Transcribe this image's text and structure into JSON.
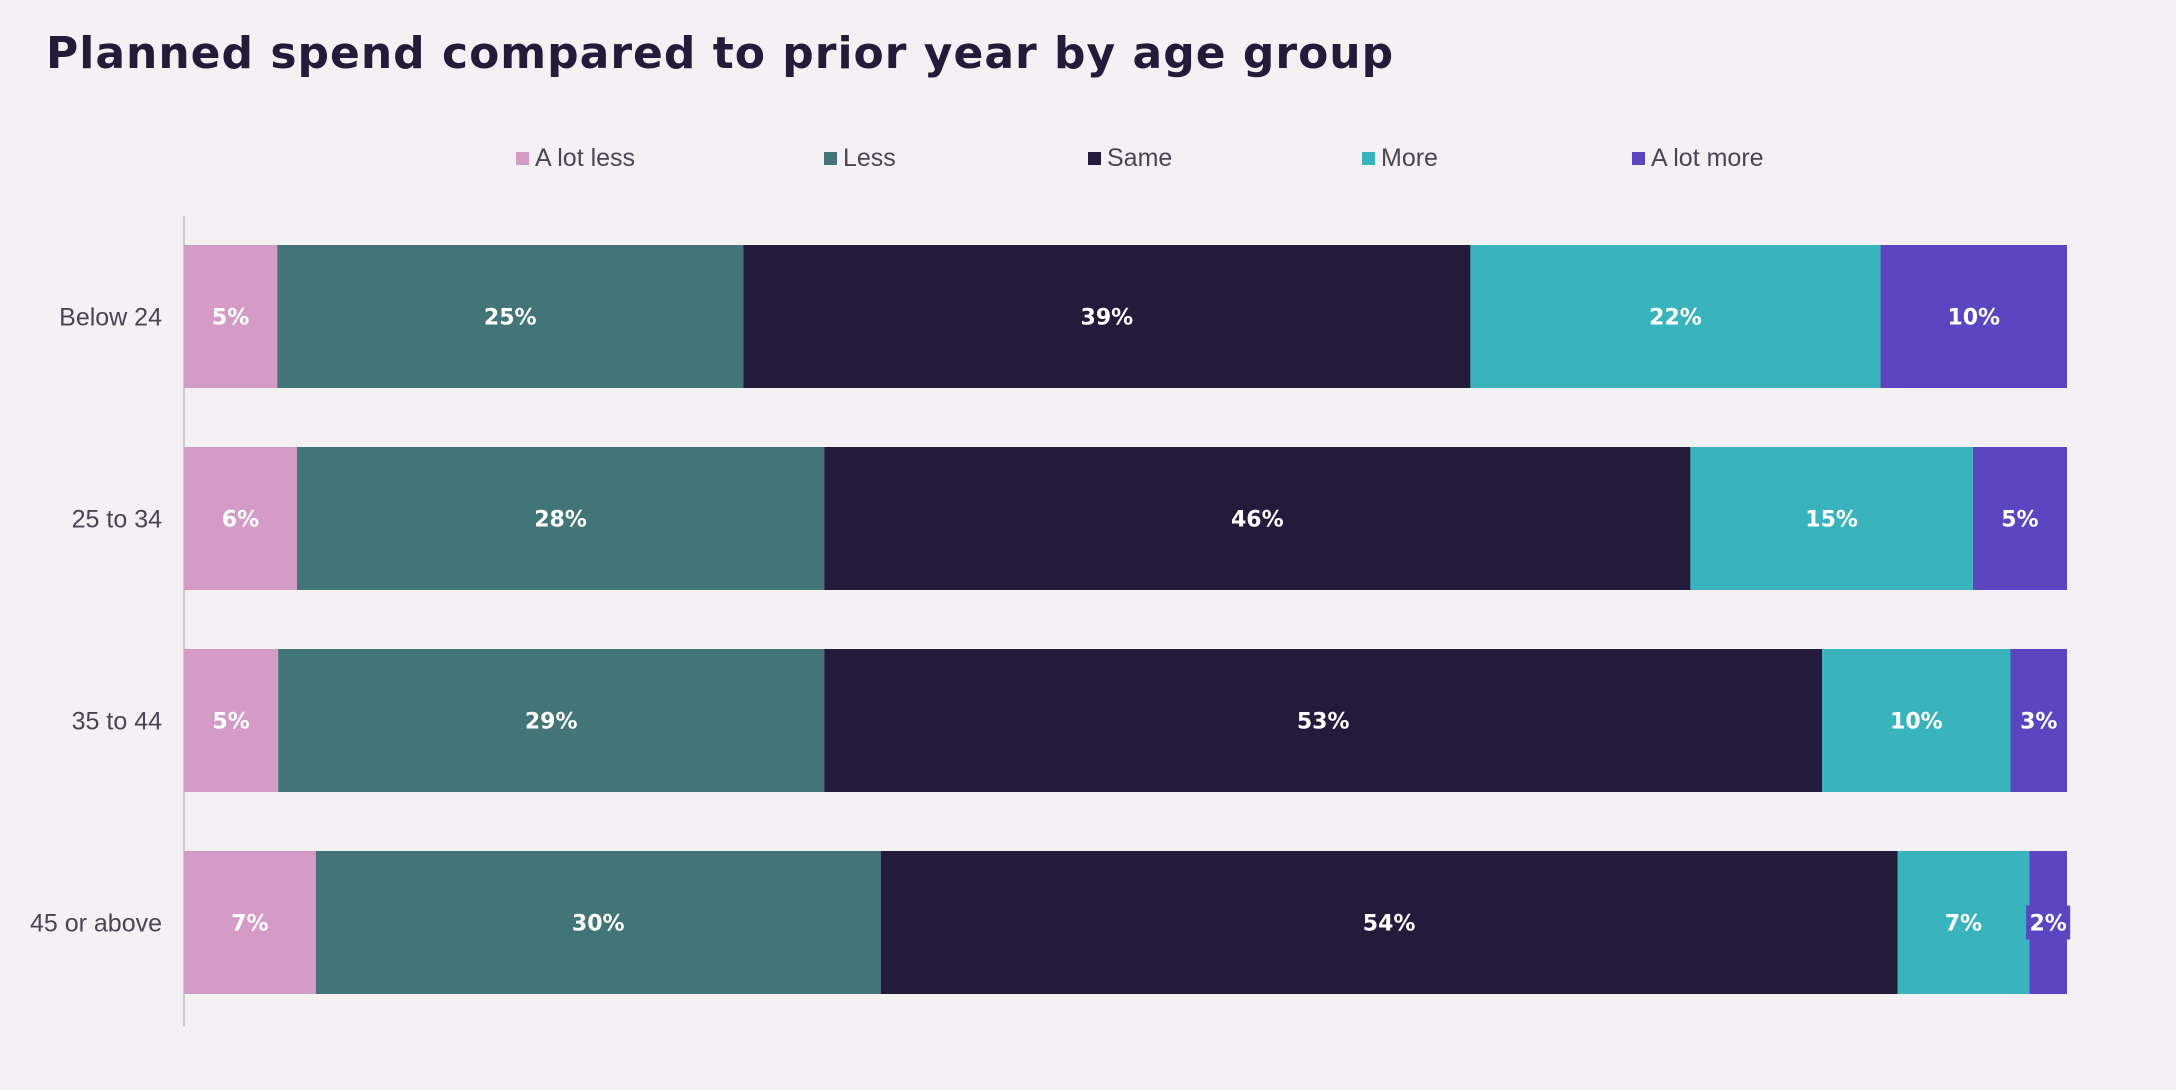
{
  "chart_data": {
    "type": "bar",
    "orientation": "horizontal",
    "stacked": true,
    "title": "Planned spend compared to prior year by age group",
    "categories": [
      "Below 24",
      "25 to 34",
      "35 to 44",
      "45 or above"
    ],
    "series": [
      {
        "name": "A lot less",
        "color": "#d49bc6",
        "values": [
          5,
          6,
          5,
          7
        ]
      },
      {
        "name": "Less",
        "color": "#427577",
        "values": [
          25,
          28,
          29,
          30
        ]
      },
      {
        "name": "Same",
        "color": "#241a3a",
        "values": [
          39,
          46,
          53,
          54
        ]
      },
      {
        "name": "More",
        "color": "#3ab4bc",
        "values": [
          22,
          15,
          10,
          7
        ]
      },
      {
        "name": "A lot more",
        "color": "#5b45c0",
        "values": [
          10,
          5,
          3,
          2
        ]
      }
    ],
    "value_suffix": "%",
    "legend_position": "top",
    "grid": false
  }
}
